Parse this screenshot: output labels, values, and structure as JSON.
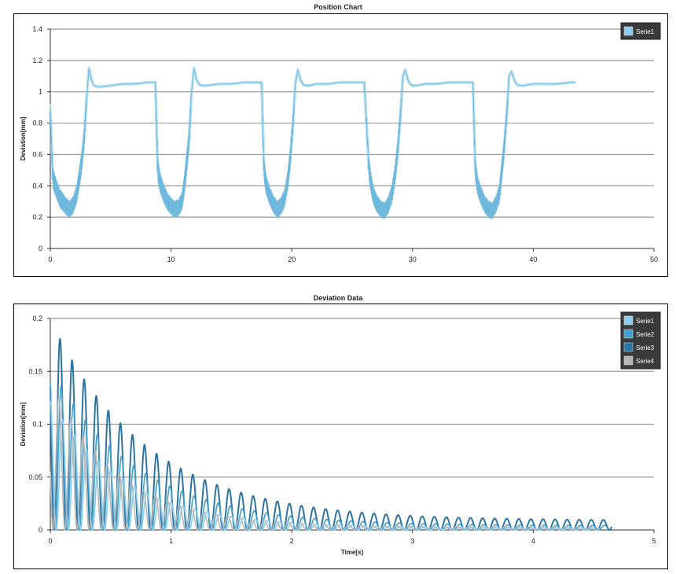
{
  "chart_data": [
    {
      "type": "line",
      "title": "Position Chart",
      "xlabel": "",
      "ylabel": "Deviation[mm]",
      "xlim": [
        0,
        50
      ],
      "ylim": [
        0,
        1.4
      ],
      "xticks": [
        0,
        10,
        20,
        30,
        40,
        50
      ],
      "yticks": [
        0,
        0.2,
        0.4,
        0.6,
        0.8,
        1,
        1.2,
        1.4
      ],
      "grid": true,
      "legend_position": "top-right",
      "series": [
        {
          "name": "Serie1",
          "color": "#8ecde8",
          "x": [
            0,
            0.2,
            0.5,
            0.8,
            1.0,
            1.3,
            1.6,
            1.9,
            2.2,
            2.4,
            2.6,
            2.8,
            3.0,
            3.2,
            3.4,
            3.6,
            4.0,
            5.0,
            6.0,
            7.0,
            8.0,
            8.7,
            8.9,
            9.1,
            9.4,
            9.7,
            10.0,
            10.3,
            10.6,
            10.9,
            11.1,
            11.3,
            11.5,
            11.7,
            11.9,
            12.1,
            12.3,
            12.5,
            13,
            14,
            15,
            16,
            17,
            17.5,
            17.7,
            17.9,
            18.2,
            18.5,
            18.8,
            19.1,
            19.4,
            19.7,
            19.9,
            20.1,
            20.3,
            20.5,
            20.7,
            20.9,
            21.1,
            21.5,
            22,
            23,
            24,
            25,
            26,
            26.4,
            26.6,
            26.8,
            27.1,
            27.4,
            27.7,
            28.0,
            28.3,
            28.6,
            28.8,
            29.0,
            29.2,
            29.4,
            29.6,
            29.8,
            30.0,
            30.4,
            31,
            32,
            33,
            34,
            35,
            35.2,
            35.4,
            35.7,
            36.0,
            36.3,
            36.6,
            36.9,
            37.2,
            37.4,
            37.6,
            37.8,
            38.0,
            38.2,
            38.4,
            38.6,
            38.8,
            39.2,
            40,
            41,
            42,
            43,
            43.5
          ],
          "y": [
            0.88,
            0.45,
            0.38,
            0.32,
            0.3,
            0.27,
            0.25,
            0.28,
            0.35,
            0.45,
            0.55,
            0.7,
            0.95,
            1.15,
            1.08,
            1.04,
            1.03,
            1.04,
            1.05,
            1.05,
            1.06,
            1.06,
            0.5,
            0.42,
            0.35,
            0.3,
            0.27,
            0.25,
            0.26,
            0.3,
            0.4,
            0.55,
            0.7,
            1.0,
            1.15,
            1.08,
            1.05,
            1.04,
            1.04,
            1.05,
            1.05,
            1.06,
            1.06,
            1.06,
            0.5,
            0.4,
            0.33,
            0.28,
            0.25,
            0.27,
            0.32,
            0.45,
            0.6,
            0.8,
            1.05,
            1.14,
            1.08,
            1.05,
            1.04,
            1.04,
            1.05,
            1.05,
            1.06,
            1.06,
            1.06,
            0.5,
            0.4,
            0.33,
            0.28,
            0.25,
            0.24,
            0.28,
            0.35,
            0.5,
            0.65,
            0.85,
            1.1,
            1.14,
            1.08,
            1.05,
            1.04,
            1.04,
            1.05,
            1.05,
            1.06,
            1.06,
            1.06,
            0.5,
            0.4,
            0.33,
            0.28,
            0.25,
            0.24,
            0.28,
            0.35,
            0.5,
            0.65,
            0.85,
            1.1,
            1.13,
            1.08,
            1.05,
            1.04,
            1.04,
            1.05,
            1.05,
            1.05,
            1.06,
            1.06
          ]
        }
      ]
    },
    {
      "type": "line",
      "title": "Deviation Data",
      "xlabel": "Time[s]",
      "ylabel": "Deviation[mm]",
      "xlim": [
        0,
        5
      ],
      "ylim": [
        0,
        0.2
      ],
      "xticks": [
        0,
        1,
        2,
        3,
        4,
        5
      ],
      "yticks": [
        0,
        0.05,
        0.1,
        0.15,
        0.2
      ],
      "grid": true,
      "legend_position": "top-right",
      "series": [
        {
          "name": "Serie1",
          "color": "#8ecde8",
          "amplitude": 0.12,
          "decay": 1.6,
          "period": 0.1,
          "floor": 0.002,
          "x_end": 4.5
        },
        {
          "name": "Serie2",
          "color": "#3f9fce",
          "amplitude": 0.15,
          "decay": 1.4,
          "period": 0.1,
          "floor": 0.004,
          "x_end": 4.6
        },
        {
          "name": "Serie3",
          "color": "#2d74a3",
          "amplitude": 0.19,
          "decay": 1.25,
          "period": 0.1,
          "floor": 0.009,
          "x_end": 4.65
        },
        {
          "name": "Serie4",
          "color": "#b5b7b9",
          "amplitude": 0.14,
          "decay": 1.8,
          "period": 0.1,
          "floor": 0.003,
          "x_end": 4.55
        }
      ]
    }
  ]
}
